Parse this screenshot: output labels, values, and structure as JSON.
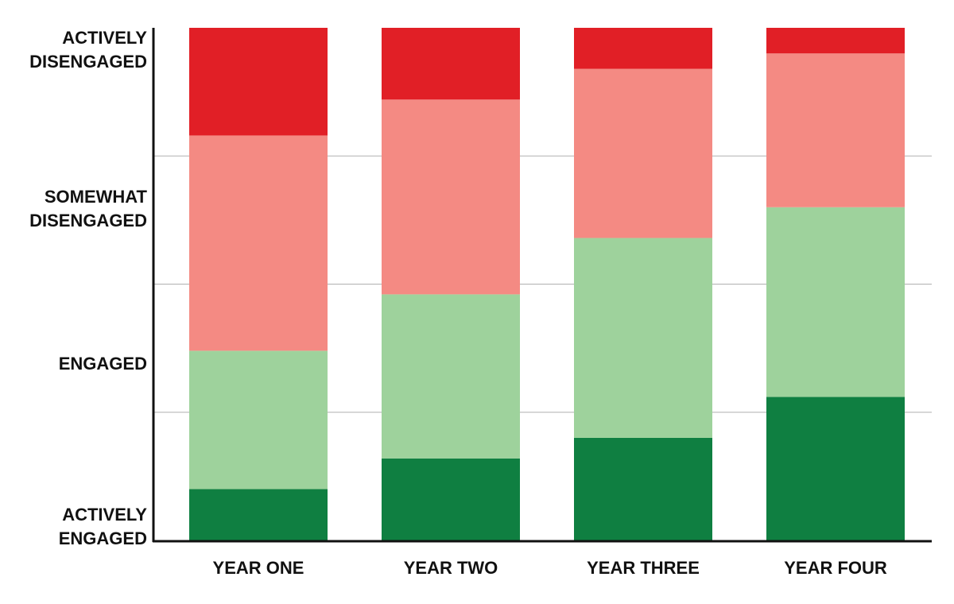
{
  "chart_data": {
    "type": "stacked_bar",
    "categories": [
      "YEAR ONE",
      "YEAR TWO",
      "YEAR THREE",
      "YEAR FOUR"
    ],
    "series": [
      {
        "name": "ACTIVELY ENGAGED",
        "color": "#0f7f41",
        "values": [
          10,
          16,
          20,
          28
        ]
      },
      {
        "name": "ENGAGED",
        "color": "#9ed29c",
        "values": [
          27,
          32,
          39,
          37
        ]
      },
      {
        "name": "SOMEWHAT DISENGAGED",
        "color": "#f48a83",
        "values": [
          42,
          38,
          33,
          30
        ]
      },
      {
        "name": "ACTIVELY DISENGAGED",
        "color": "#e11f26",
        "values": [
          21,
          14,
          8,
          5
        ]
      }
    ],
    "ylim": [
      0,
      100
    ],
    "gridlines": [
      25,
      50,
      75
    ]
  }
}
